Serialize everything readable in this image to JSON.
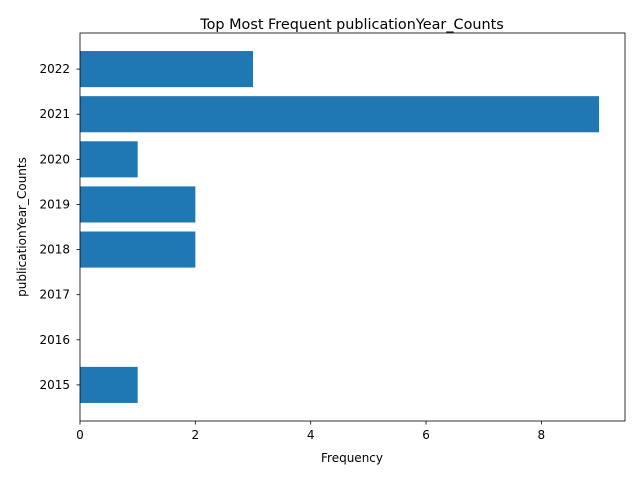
{
  "chart_data": {
    "type": "bar",
    "orientation": "horizontal",
    "title": "Top Most Frequent publicationYear_Counts",
    "xlabel": "Frequency",
    "ylabel": "publicationYear_Counts",
    "categories": [
      "2022",
      "2021",
      "2020",
      "2019",
      "2018",
      "2017",
      "2016",
      "2015"
    ],
    "values": [
      3,
      9,
      1,
      2,
      2,
      0,
      0,
      1
    ],
    "xlim": [
      0,
      9.45
    ],
    "xticks": [
      0,
      2,
      4,
      6,
      8
    ],
    "grid": false,
    "bar_color": "#1f77b4"
  }
}
